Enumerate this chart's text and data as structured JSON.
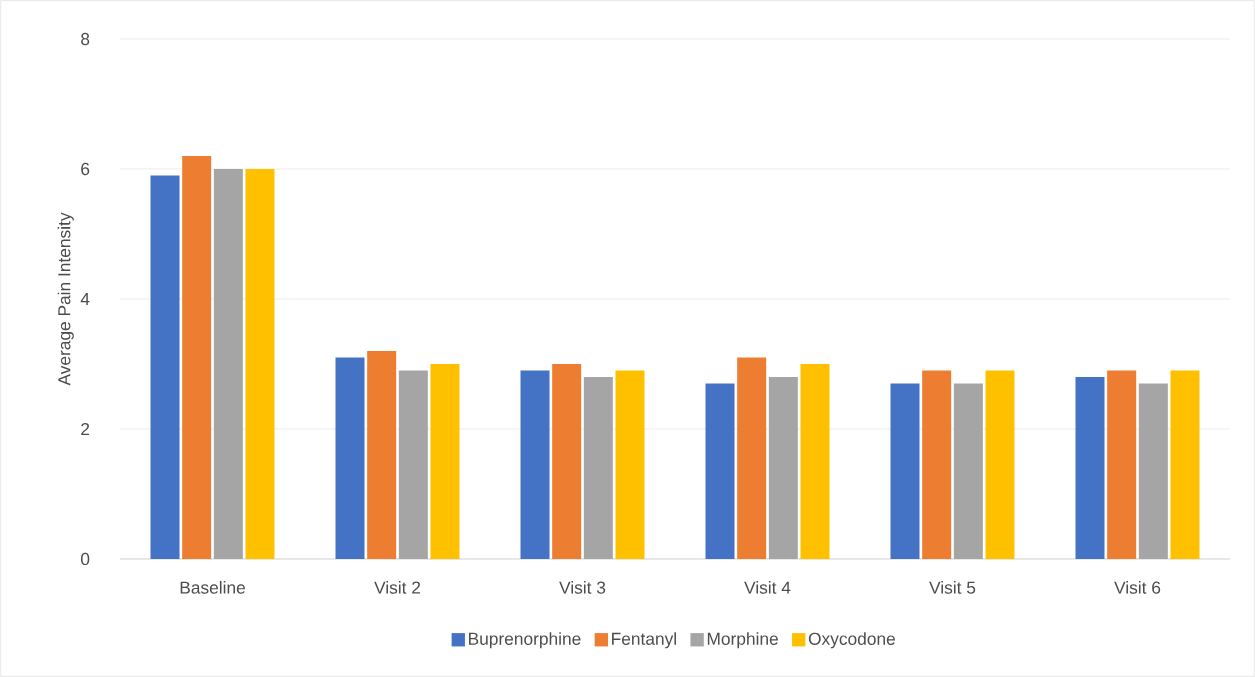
{
  "chart_data": {
    "type": "bar",
    "ylabel": "Average Pain Intensity",
    "categories": [
      "Baseline",
      "Visit 2",
      "Visit 3",
      "Visit 4",
      "Visit 5",
      "Visit 6"
    ],
    "series": [
      {
        "name": "Buprenorphine",
        "color": "#4472c4",
        "values": [
          5.9,
          3.1,
          2.9,
          2.7,
          2.7,
          2.8
        ]
      },
      {
        "name": "Fentanyl",
        "color": "#ed7d31",
        "values": [
          6.2,
          3.2,
          3.0,
          3.1,
          2.9,
          2.9
        ]
      },
      {
        "name": "Morphine",
        "color": "#a5a5a5",
        "values": [
          6.0,
          2.9,
          2.8,
          2.8,
          2.7,
          2.7
        ]
      },
      {
        "name": "Oxycodone",
        "color": "#ffc000",
        "values": [
          6.0,
          3.0,
          2.9,
          3.0,
          2.9,
          2.9
        ]
      }
    ],
    "ylim": [
      0,
      8
    ],
    "yticks": [
      0,
      2,
      4,
      6,
      8
    ],
    "grid": "y",
    "legend": "bottom"
  }
}
